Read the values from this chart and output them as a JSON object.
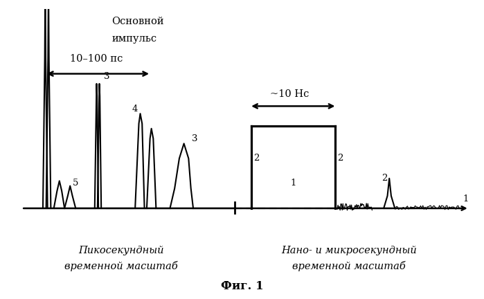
{
  "bg_color": "#ffffff",
  "line_color": "#000000",
  "title": "Фиг. 1",
  "label_osnov_1": "Основной",
  "label_osnov_2": "импульс",
  "label_ps": "10–100 пс",
  "label_ns": "~10 Нс",
  "label_pico_1": "Пикосекундный",
  "label_pico_2": "временной масштаб",
  "label_nano_1": "Нано- и микросекундный",
  "label_nano_2": "временной масштаб",
  "n_3a": "3",
  "n_3b": "3",
  "n_4": "4",
  "n_5": "5",
  "n_1": "1",
  "n_2a": "2",
  "n_2b": "2",
  "n_2c": "2",
  "n_1r": "1"
}
